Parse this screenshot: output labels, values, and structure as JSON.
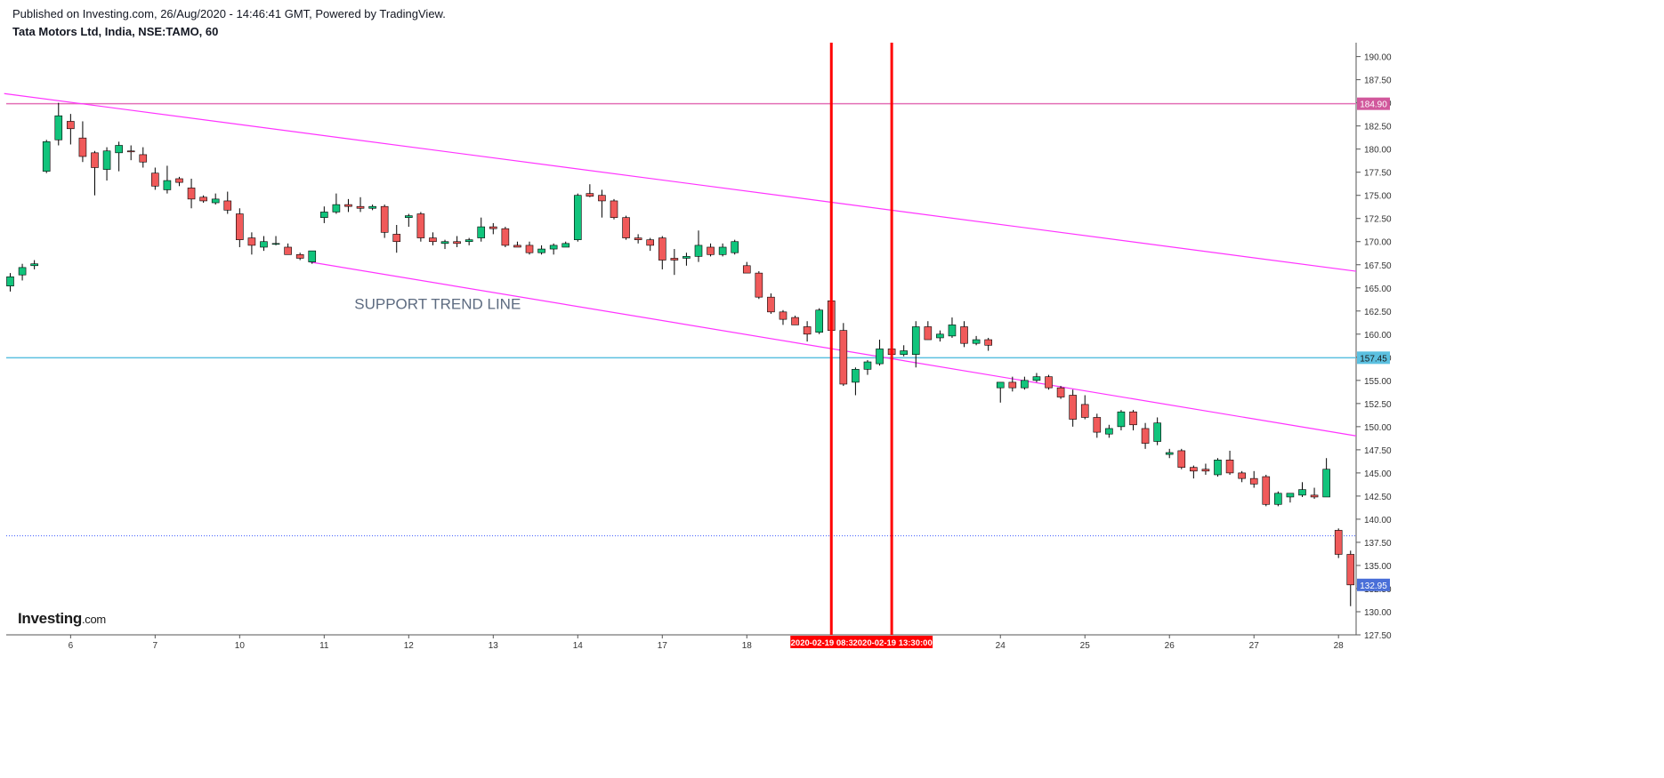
{
  "header": {
    "published": "Published on Investing.com, 26/Aug/2020 - 14:46:41 GMT, Powered by TradingView.",
    "symbol": "Tata Motors Ltd, India, NSE:TAMO, 60"
  },
  "logo": {
    "name": "Investing",
    "suffix": ".com"
  },
  "colors": {
    "up": "#11c47c",
    "down": "#f05a5a",
    "wick": "#000000",
    "trend": "#ff33ff",
    "hline_pink": "#e36fb6",
    "hline_blue": "#5bc0e0",
    "dotted": "#3d5afe",
    "vline": "#ff0000",
    "label_pink": "#d1589c",
    "label_blue": "#4a6fd8",
    "axis": "#555555"
  },
  "chart_data": {
    "type": "candlestick",
    "title": "Tata Motors Ltd, India, NSE:TAMO, 60",
    "ylim": [
      127.5,
      191.5
    ],
    "y_ticks": [
      "127.50",
      "130.00",
      "132.50",
      "135.00",
      "137.50",
      "140.00",
      "142.50",
      "145.00",
      "147.50",
      "150.00",
      "152.50",
      "155.00",
      "157.50",
      "160.00",
      "162.50",
      "165.00",
      "167.50",
      "170.00",
      "172.50",
      "175.00",
      "177.50",
      "180.00",
      "182.50",
      "185.00",
      "187.50",
      "190.00"
    ],
    "x_labels": [
      "6",
      "7",
      "10",
      "11",
      "12",
      "13",
      "14",
      "17",
      "18",
      "24",
      "25",
      "26",
      "27",
      "28"
    ],
    "x_label_index": [
      5,
      12,
      19,
      26,
      33,
      40,
      47,
      54,
      61,
      82,
      89,
      96,
      103,
      110
    ],
    "candles": [
      [
        165.2,
        166.6,
        164.6,
        166.2
      ],
      [
        166.4,
        167.6,
        165.8,
        167.2
      ],
      [
        167.4,
        168.0,
        167.0,
        167.6
      ],
      [
        177.6,
        181.0,
        177.4,
        180.8
      ],
      [
        181.0,
        185.0,
        180.4,
        183.6
      ],
      [
        183.0,
        183.8,
        180.5,
        182.2
      ],
      [
        181.2,
        183.0,
        178.6,
        179.2
      ],
      [
        179.6,
        179.8,
        175.0,
        178.0
      ],
      [
        177.8,
        180.2,
        176.6,
        179.8
      ],
      [
        179.6,
        180.8,
        177.6,
        180.4
      ],
      [
        179.8,
        180.4,
        178.8,
        179.7
      ],
      [
        179.4,
        180.2,
        178.0,
        178.6
      ],
      [
        177.4,
        178.0,
        175.6,
        176.0
      ],
      [
        175.6,
        178.2,
        175.2,
        176.6
      ],
      [
        176.8,
        177.0,
        176.0,
        176.4
      ],
      [
        175.8,
        176.8,
        173.6,
        174.6
      ],
      [
        174.8,
        175.0,
        174.2,
        174.4
      ],
      [
        174.2,
        175.2,
        174.0,
        174.6
      ],
      [
        174.4,
        175.4,
        173.0,
        173.4
      ],
      [
        173.0,
        173.6,
        169.4,
        170.2
      ],
      [
        170.4,
        171.0,
        168.6,
        169.6
      ],
      [
        169.4,
        170.6,
        169.0,
        170.0
      ],
      [
        169.8,
        170.6,
        169.6,
        169.8
      ],
      [
        169.4,
        169.8,
        168.6,
        168.6
      ],
      [
        168.6,
        168.8,
        168.0,
        168.2
      ],
      [
        167.8,
        168.8,
        167.6,
        169.0
      ],
      [
        172.6,
        173.8,
        172.0,
        173.2
      ],
      [
        173.2,
        175.2,
        173.0,
        174.0
      ],
      [
        174.0,
        174.6,
        173.2,
        173.8
      ],
      [
        173.8,
        174.8,
        173.2,
        173.6
      ],
      [
        173.6,
        174.0,
        173.4,
        173.8
      ],
      [
        173.8,
        174.0,
        170.4,
        171.0
      ],
      [
        170.8,
        171.8,
        168.8,
        170.0
      ],
      [
        172.6,
        173.0,
        171.6,
        172.8
      ],
      [
        173.0,
        173.2,
        170.0,
        170.4
      ],
      [
        170.4,
        171.0,
        169.6,
        170.0
      ],
      [
        169.8,
        170.2,
        169.2,
        170.0
      ],
      [
        170.0,
        170.6,
        169.4,
        169.8
      ],
      [
        170.0,
        170.4,
        169.6,
        170.2
      ],
      [
        170.4,
        172.6,
        170.0,
        171.6
      ],
      [
        171.6,
        172.0,
        170.8,
        171.4
      ],
      [
        171.4,
        171.6,
        169.4,
        169.6
      ],
      [
        169.6,
        170.0,
        169.4,
        169.4
      ],
      [
        169.6,
        170.0,
        168.6,
        168.8
      ],
      [
        168.8,
        169.6,
        168.6,
        169.2
      ],
      [
        169.2,
        169.8,
        168.6,
        169.6
      ],
      [
        169.4,
        170.0,
        169.4,
        169.8
      ],
      [
        170.2,
        175.2,
        170.0,
        175.0
      ],
      [
        175.2,
        176.2,
        174.8,
        174.9
      ],
      [
        175.0,
        175.6,
        172.6,
        174.4
      ],
      [
        174.4,
        174.6,
        172.4,
        172.6
      ],
      [
        172.6,
        172.8,
        170.2,
        170.4
      ],
      [
        170.4,
        170.8,
        169.8,
        170.2
      ],
      [
        170.2,
        170.4,
        169.0,
        169.6
      ],
      [
        170.4,
        170.6,
        167.0,
        168.0
      ],
      [
        168.2,
        169.2,
        166.4,
        168.0
      ],
      [
        168.2,
        168.8,
        167.4,
        168.4
      ],
      [
        168.4,
        171.2,
        167.8,
        169.6
      ],
      [
        169.4,
        169.8,
        168.4,
        168.6
      ],
      [
        168.6,
        169.8,
        168.4,
        169.4
      ],
      [
        168.8,
        170.2,
        168.6,
        170.0
      ],
      [
        167.4,
        167.8,
        166.8,
        166.6
      ],
      [
        166.6,
        166.8,
        163.8,
        164.0
      ],
      [
        164.0,
        164.4,
        162.2,
        162.4
      ],
      [
        162.4,
        162.6,
        161.0,
        161.6
      ],
      [
        161.8,
        162.0,
        161.0,
        161.0
      ],
      [
        160.8,
        161.4,
        159.2,
        160.0
      ],
      [
        160.2,
        162.8,
        160.0,
        162.6
      ],
      [
        163.6,
        164.2,
        160.2,
        160.4
      ],
      [
        160.4,
        161.2,
        154.4,
        154.6
      ],
      [
        154.8,
        156.4,
        153.4,
        156.2
      ],
      [
        156.2,
        157.2,
        155.6,
        157.0
      ],
      [
        156.8,
        159.4,
        156.6,
        158.4
      ],
      [
        158.4,
        159.0,
        157.4,
        157.8
      ],
      [
        157.8,
        158.8,
        157.6,
        158.2
      ],
      [
        157.8,
        161.4,
        156.4,
        160.8
      ],
      [
        160.8,
        161.4,
        159.4,
        159.4
      ],
      [
        159.6,
        160.4,
        159.2,
        160.0
      ],
      [
        159.8,
        161.8,
        159.6,
        161.0
      ],
      [
        160.8,
        161.4,
        158.6,
        159.0
      ],
      [
        159.0,
        159.8,
        158.8,
        159.4
      ],
      [
        159.4,
        159.6,
        158.2,
        158.8
      ],
      [
        154.2,
        154.8,
        152.6,
        154.8
      ],
      [
        154.8,
        155.4,
        153.8,
        154.2
      ],
      [
        154.2,
        155.4,
        154.0,
        155.0
      ],
      [
        155.0,
        155.8,
        154.8,
        155.4
      ],
      [
        155.4,
        155.6,
        154.0,
        154.2
      ],
      [
        154.2,
        154.4,
        153.0,
        153.2
      ],
      [
        153.4,
        154.0,
        150.0,
        150.8
      ],
      [
        152.4,
        153.4,
        150.8,
        151.0
      ],
      [
        151.0,
        151.4,
        148.8,
        149.4
      ],
      [
        149.2,
        150.2,
        148.8,
        149.8
      ],
      [
        150.0,
        151.8,
        149.6,
        151.6
      ],
      [
        151.6,
        151.8,
        149.6,
        150.2
      ],
      [
        149.8,
        150.4,
        147.6,
        148.2
      ],
      [
        148.4,
        151.0,
        148.0,
        150.4
      ],
      [
        147.0,
        147.6,
        146.6,
        147.2
      ],
      [
        147.4,
        147.6,
        145.4,
        145.6
      ],
      [
        145.6,
        145.8,
        144.4,
        145.2
      ],
      [
        145.4,
        146.0,
        144.8,
        145.2
      ],
      [
        144.8,
        146.6,
        144.6,
        146.4
      ],
      [
        146.4,
        147.4,
        144.8,
        145.0
      ],
      [
        145.0,
        145.2,
        144.0,
        144.4
      ],
      [
        144.4,
        145.2,
        143.4,
        143.8
      ],
      [
        144.6,
        144.8,
        141.4,
        141.6
      ],
      [
        141.6,
        143.0,
        141.4,
        142.8
      ],
      [
        142.4,
        142.8,
        141.8,
        142.8
      ],
      [
        142.6,
        144.0,
        142.4,
        143.2
      ],
      [
        142.6,
        143.4,
        142.2,
        142.4
      ],
      [
        142.4,
        146.6,
        142.4,
        145.4
      ],
      [
        138.8,
        139.0,
        135.8,
        136.2
      ],
      [
        136.2,
        136.6,
        130.6,
        132.9
      ]
    ],
    "horizontal_lines": [
      {
        "price": 184.9,
        "label": "184.90",
        "color": "#e36fb6",
        "style": "solid"
      },
      {
        "price": 157.45,
        "label": "157.45",
        "color": "#5bc0e0",
        "style": "solid"
      },
      {
        "price": 138.2,
        "label": "",
        "color": "#3d5afe",
        "style": "dotted"
      }
    ],
    "last_price_label": "132.95",
    "trend_lines": [
      {
        "from": [
          -0.5,
          186.0
        ],
        "to": [
          113.5,
          166.8
        ]
      },
      {
        "from": [
          24.8,
          167.8
        ],
        "to": [
          113.5,
          149.0
        ]
      }
    ],
    "vertical_lines": [
      {
        "index": 68.0,
        "label": "2020-02-19 08:30:00"
      },
      {
        "index": 73.0,
        "label": "2020-02-19 13:30:00"
      }
    ],
    "annotation": {
      "text": "SUPPORT TREND LINE",
      "index": 28.5,
      "price": 162.7
    }
  }
}
